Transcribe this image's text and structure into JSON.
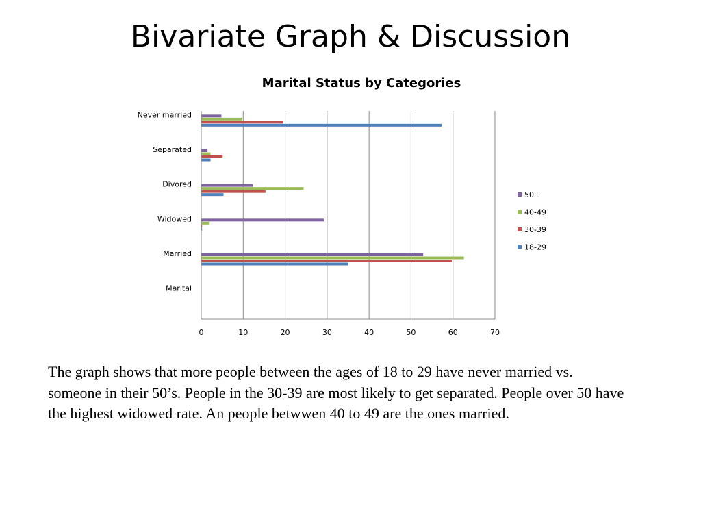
{
  "slide": {
    "title": "Bivariate Graph & Discussion",
    "discussion": "The graph shows that more people between the ages of 18 to 29 have never married vs. someone in their 50’s. People in the 30-39 are most likely to get separated. People over 50 have the highest widowed rate. An people betwwen 40 to 49 are the ones married."
  },
  "chart_data": {
    "type": "bar",
    "orientation": "horizontal",
    "title": "Marital Status by Categories",
    "xlabel": "",
    "ylabel": "",
    "categories": [
      "Marital",
      "Married",
      "Widowed",
      "Divored",
      "Separated",
      "Never married"
    ],
    "xlim": [
      0,
      70
    ],
    "xticks": [
      0,
      10,
      20,
      30,
      40,
      50,
      60,
      70
    ],
    "grid": "vertical",
    "legend_position": "right",
    "series": [
      {
        "name": "18-29",
        "color": "#4F81BD",
        "values": [
          null,
          35,
          0,
          5.3,
          2.2,
          57.3
        ]
      },
      {
        "name": "30-39",
        "color": "#C0504D",
        "values": [
          null,
          59.7,
          0,
          15.3,
          5.1,
          19.5
        ]
      },
      {
        "name": "40-49",
        "color": "#9BBB59",
        "values": [
          null,
          62.6,
          2,
          24.4,
          2.2,
          9.8
        ]
      },
      {
        "name": "50+",
        "color": "#8064A2",
        "values": [
          null,
          52.9,
          29.2,
          12.3,
          1.5,
          4.8
        ]
      }
    ]
  }
}
